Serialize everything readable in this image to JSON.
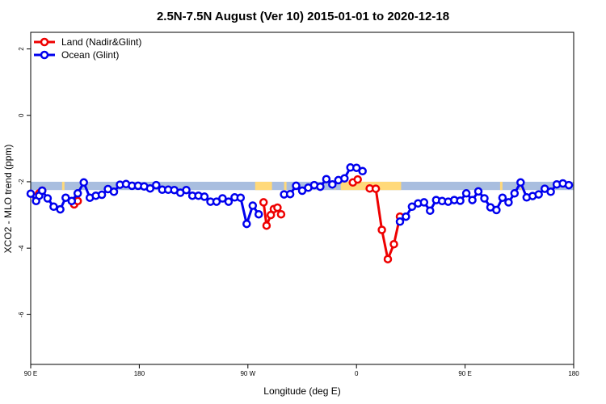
{
  "chart_data": {
    "type": "line",
    "title": "2.5N-7.5N August (Ver 10)   2015-01-01 to 2020-12-18",
    "xlabel": "Longitude (deg E)",
    "ylabel": "XCO2 - MLO trend (ppm)",
    "xlim": [
      90,
      540
    ],
    "ylim": [
      -7.5,
      2.5
    ],
    "x_ticks": [
      {
        "value": 90,
        "label": "90 E"
      },
      {
        "value": 180,
        "label": "180"
      },
      {
        "value": 270,
        "label": "90 W"
      },
      {
        "value": 360,
        "label": "0"
      },
      {
        "value": 450,
        "label": "90 E"
      },
      {
        "value": 540,
        "label": "180"
      }
    ],
    "y_ticks": [
      {
        "value": 2,
        "label": "2"
      },
      {
        "value": 0,
        "label": "0"
      },
      {
        "value": -2,
        "label": "-2"
      },
      {
        "value": -4,
        "label": "-4"
      },
      {
        "value": -6,
        "label": "-6"
      }
    ],
    "legend": {
      "position": "top-left",
      "entries": [
        {
          "label": "Land (Nadir&Glint)",
          "color": "#ee0000"
        },
        {
          "label": "Ocean (Glint)",
          "color": "#0000ee"
        }
      ]
    },
    "surface_strip": {
      "y_top": -2.0,
      "y_bottom": -2.25,
      "ocean_color": "#a9bedf",
      "land_color": "#ffd97a",
      "land_ranges": [
        [
          116,
          118
        ],
        [
          276,
          290
        ],
        [
          300,
          302
        ],
        [
          342,
          342.5
        ],
        [
          347,
          397
        ],
        [
          479,
          481
        ],
        [
          496,
          498
        ]
      ]
    },
    "series": [
      {
        "name": "Land (Nadir&Glint)",
        "color": "#ee0000",
        "points": [
          [
            94.5,
            -2.45
          ],
          [
            97,
            -2.35
          ],
          [
            99.5,
            -2.27
          ],
          [
            126,
            -2.68
          ],
          [
            129,
            -2.58
          ],
          [
            283,
            -2.62
          ],
          [
            285.5,
            -3.32
          ],
          [
            289,
            -3.0
          ],
          [
            291.5,
            -2.82
          ],
          [
            294.5,
            -2.78
          ],
          [
            297.5,
            -2.98
          ],
          [
            357,
            -2.02
          ],
          [
            361,
            -1.93
          ],
          [
            371,
            -2.2
          ],
          [
            376,
            -2.21
          ],
          [
            381,
            -3.45
          ],
          [
            386,
            -4.33
          ],
          [
            391,
            -3.88
          ],
          [
            396,
            -3.05
          ]
        ]
      },
      {
        "name": "Ocean (Glint)",
        "color": "#0000ee",
        "points": [
          [
            90,
            -2.36
          ],
          [
            94.5,
            -2.58
          ],
          [
            97,
            -2.42
          ],
          [
            99.5,
            -2.27
          ],
          [
            104,
            -2.5
          ],
          [
            109,
            -2.75
          ],
          [
            114.5,
            -2.83
          ],
          [
            119,
            -2.48
          ],
          [
            124,
            -2.58
          ],
          [
            129,
            -2.35
          ],
          [
            134,
            -2.02
          ],
          [
            139,
            -2.48
          ],
          [
            144,
            -2.42
          ],
          [
            149,
            -2.39
          ],
          [
            154,
            -2.22
          ],
          [
            159,
            -2.3
          ],
          [
            164,
            -2.09
          ],
          [
            169,
            -2.07
          ],
          [
            174,
            -2.12
          ],
          [
            179,
            -2.12
          ],
          [
            184,
            -2.14
          ],
          [
            189,
            -2.2
          ],
          [
            194,
            -2.1
          ],
          [
            199,
            -2.24
          ],
          [
            204,
            -2.24
          ],
          [
            209,
            -2.25
          ],
          [
            214,
            -2.33
          ],
          [
            219,
            -2.25
          ],
          [
            224,
            -2.42
          ],
          [
            229,
            -2.42
          ],
          [
            234,
            -2.45
          ],
          [
            239,
            -2.6
          ],
          [
            244,
            -2.6
          ],
          [
            249,
            -2.5
          ],
          [
            254,
            -2.6
          ],
          [
            259,
            -2.47
          ],
          [
            264,
            -2.48
          ],
          [
            269,
            -3.27
          ],
          [
            274,
            -2.72
          ],
          [
            279,
            -2.98
          ],
          [
            300,
            -2.38
          ],
          [
            305,
            -2.37
          ],
          [
            310,
            -2.12
          ],
          [
            315,
            -2.27
          ],
          [
            320,
            -2.18
          ],
          [
            325,
            -2.1
          ],
          [
            330,
            -2.15
          ],
          [
            335,
            -1.92
          ],
          [
            340,
            -2.08
          ],
          [
            345,
            -1.95
          ],
          [
            350,
            -1.9
          ],
          [
            355,
            -1.57
          ],
          [
            360,
            -1.58
          ],
          [
            365,
            -1.68
          ],
          [
            396,
            -3.2
          ],
          [
            401,
            -3.05
          ],
          [
            406,
            -2.75
          ],
          [
            411,
            -2.65
          ],
          [
            416,
            -2.62
          ],
          [
            421,
            -2.87
          ],
          [
            426,
            -2.55
          ],
          [
            431,
            -2.58
          ],
          [
            436,
            -2.6
          ],
          [
            441,
            -2.55
          ],
          [
            446,
            -2.57
          ],
          [
            451,
            -2.35
          ],
          [
            456,
            -2.55
          ],
          [
            461,
            -2.29
          ],
          [
            466,
            -2.5
          ],
          [
            471,
            -2.77
          ],
          [
            476,
            -2.85
          ],
          [
            481,
            -2.48
          ],
          [
            486,
            -2.62
          ],
          [
            491,
            -2.35
          ],
          [
            496,
            -2.02
          ],
          [
            501,
            -2.47
          ],
          [
            506,
            -2.43
          ],
          [
            511,
            -2.38
          ],
          [
            516,
            -2.21
          ],
          [
            521,
            -2.3
          ],
          [
            526,
            -2.08
          ],
          [
            531,
            -2.05
          ],
          [
            536,
            -2.1
          ]
        ]
      }
    ]
  }
}
